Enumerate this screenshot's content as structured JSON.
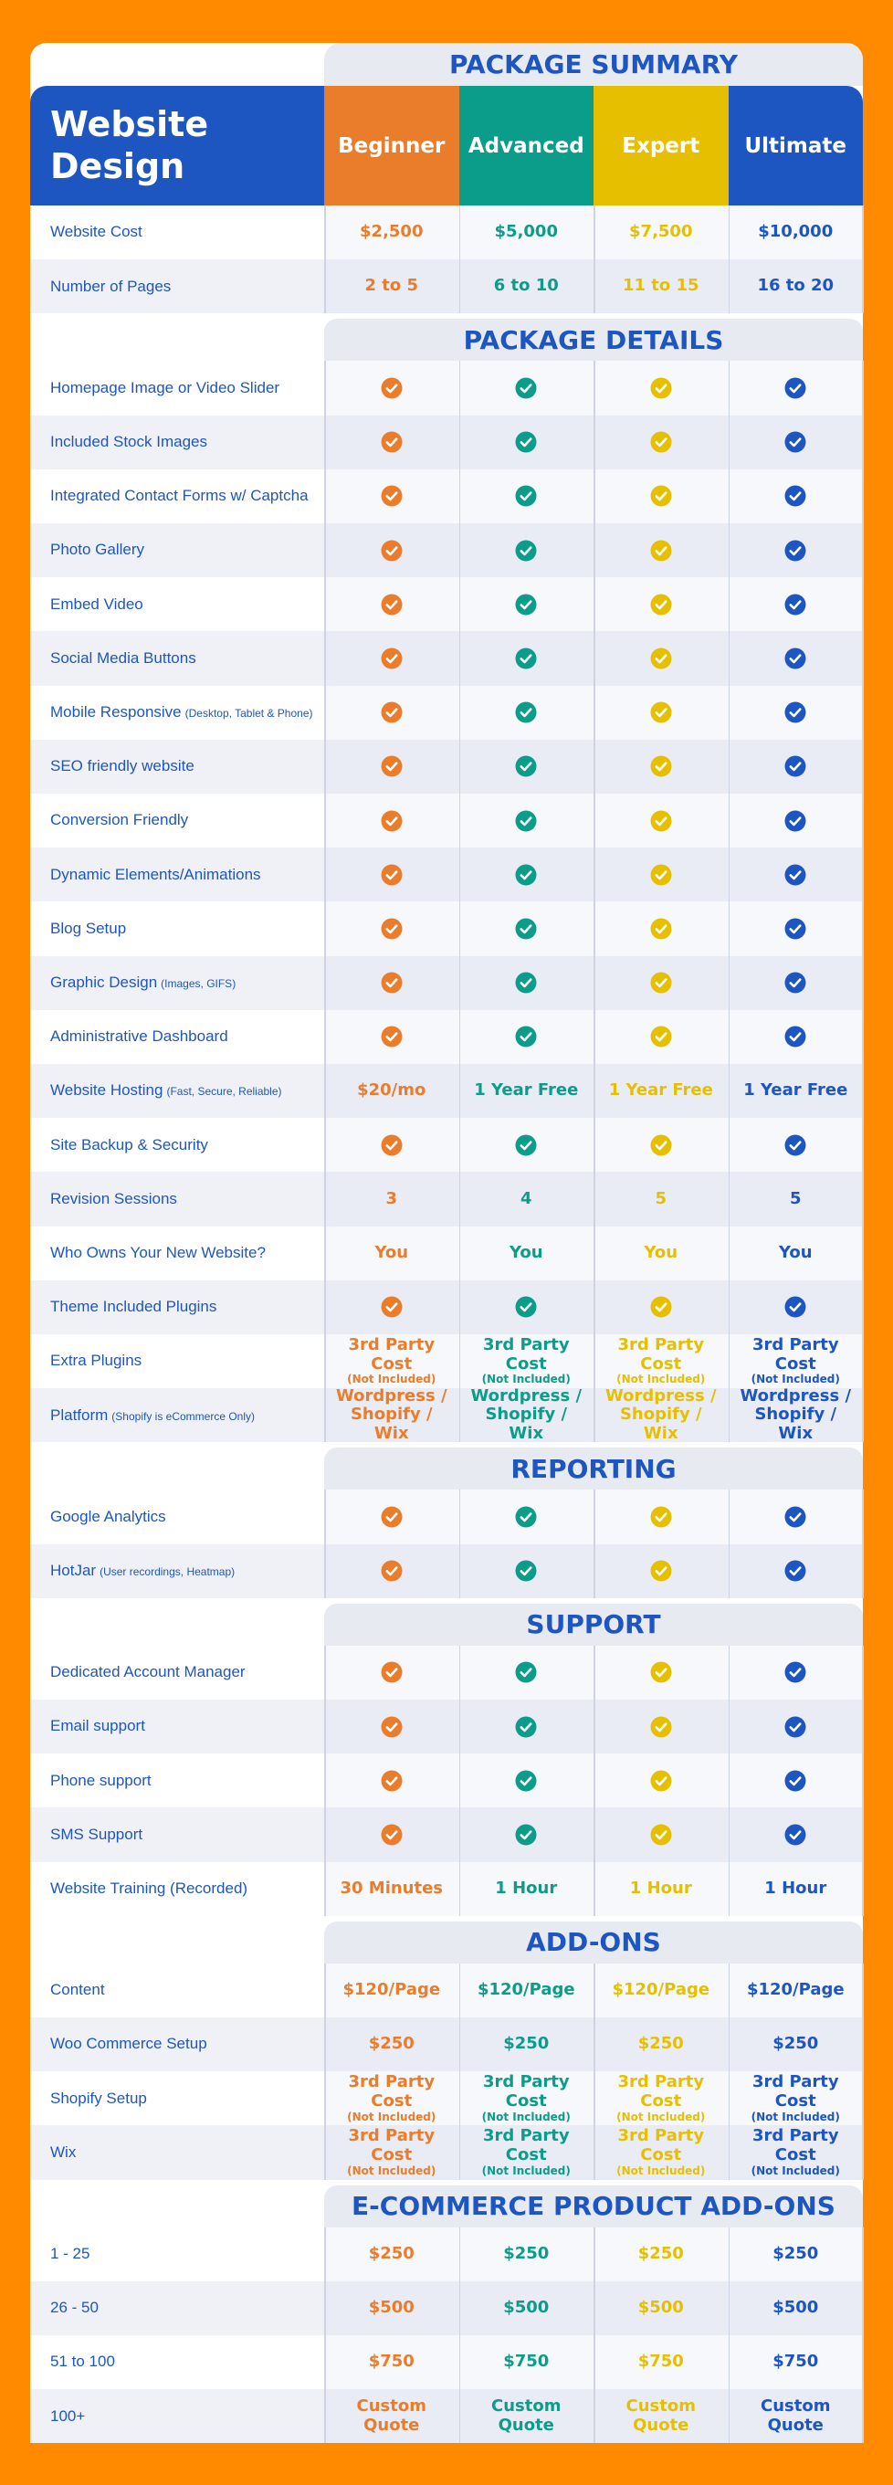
{
  "header": {
    "title": "Website Design"
  },
  "plans": [
    {
      "name": "Beginner",
      "color": "#E97D2C"
    },
    {
      "name": "Advanced",
      "color": "#0C9C8A"
    },
    {
      "name": "Expert",
      "color": "#E6C000"
    },
    {
      "name": "Ultimate",
      "color": "#1E56C1"
    }
  ],
  "sections": [
    {
      "title": "PACKAGE SUMMARY",
      "rows": [
        {
          "label": "Website Cost",
          "cells": [
            "$2,500",
            "$5,000",
            "$7,500",
            "$10,000"
          ]
        },
        {
          "label": "Number of Pages",
          "cells": [
            "2 to 5",
            "6 to 10",
            "11 to 15",
            "16 to 20"
          ]
        }
      ]
    },
    {
      "title": "PACKAGE DETAILS",
      "rows": [
        {
          "label": "Homepage Image or Video Slider",
          "cells": [
            true,
            true,
            true,
            true
          ]
        },
        {
          "label": "Included Stock Images",
          "cells": [
            true,
            true,
            true,
            true
          ]
        },
        {
          "label": "Integrated Contact Forms w/ Captcha",
          "cells": [
            true,
            true,
            true,
            true
          ]
        },
        {
          "label": "Photo Gallery",
          "cells": [
            true,
            true,
            true,
            true
          ]
        },
        {
          "label": "Embed Video",
          "cells": [
            true,
            true,
            true,
            true
          ]
        },
        {
          "label": "Social Media Buttons",
          "cells": [
            true,
            true,
            true,
            true
          ]
        },
        {
          "label": "Mobile Responsive",
          "note": "(Desktop, Tablet & Phone)",
          "cells": [
            true,
            true,
            true,
            true
          ]
        },
        {
          "label": "SEO friendly website",
          "cells": [
            true,
            true,
            true,
            true
          ]
        },
        {
          "label": "Conversion Friendly",
          "cells": [
            true,
            true,
            true,
            true
          ]
        },
        {
          "label": "Dynamic Elements/Animations",
          "cells": [
            true,
            true,
            true,
            true
          ]
        },
        {
          "label": "Blog Setup",
          "cells": [
            true,
            true,
            true,
            true
          ]
        },
        {
          "label": "Graphic Design",
          "note": "(Images, GIFS)",
          "cells": [
            true,
            true,
            true,
            true
          ]
        },
        {
          "label": "Administrative Dashboard",
          "cells": [
            true,
            true,
            true,
            true
          ]
        },
        {
          "label": "Website Hosting",
          "note": "(Fast, Secure, Reliable)",
          "cells": [
            "$20/mo",
            "1 Year Free",
            "1 Year Free",
            "1 Year Free"
          ]
        },
        {
          "label": "Site Backup & Security",
          "cells": [
            true,
            true,
            true,
            true
          ]
        },
        {
          "label": "Revision Sessions",
          "cells": [
            3,
            4,
            5,
            5
          ]
        },
        {
          "label": "Who Owns Your New Website?",
          "cells": [
            "You",
            "You",
            "You",
            "You"
          ]
        },
        {
          "label": "Theme Included Plugins",
          "cells": [
            true,
            true,
            true,
            true
          ]
        },
        {
          "label": "Extra Plugins",
          "cells": [
            {
              "text": "3rd Party Cost",
              "note": "(Not Included)"
            },
            {
              "text": "3rd Party Cost",
              "note": "(Not Included)"
            },
            {
              "text": "3rd Party Cost",
              "note": "(Not Included)"
            },
            {
              "text": "3rd Party Cost",
              "note": "(Not Included)"
            }
          ]
        },
        {
          "label": "Platform",
          "note": "(Shopify is eCommerce Only)",
          "cells": [
            "Wordpress / Shopify / Wix",
            "Wordpress / Shopify / Wix",
            "Wordpress / Shopify / Wix",
            "Wordpress / Shopify / Wix"
          ]
        }
      ]
    },
    {
      "title": "REPORTING",
      "rows": [
        {
          "label": "Google Analytics",
          "cells": [
            true,
            true,
            true,
            true
          ]
        },
        {
          "label": "HotJar",
          "note": "(User recordings, Heatmap)",
          "cells": [
            true,
            true,
            true,
            true
          ]
        }
      ]
    },
    {
      "title": "SUPPORT",
      "rows": [
        {
          "label": "Dedicated Account Manager",
          "cells": [
            true,
            true,
            true,
            true
          ]
        },
        {
          "label": "Email support",
          "cells": [
            true,
            true,
            true,
            true
          ]
        },
        {
          "label": "Phone support",
          "cells": [
            true,
            true,
            true,
            true
          ]
        },
        {
          "label": "SMS Support",
          "cells": [
            true,
            true,
            true,
            true
          ]
        },
        {
          "label": "Website Training (Recorded)",
          "cells": [
            "30 Minutes",
            "1 Hour",
            "1 Hour",
            "1 Hour"
          ]
        }
      ]
    },
    {
      "title": "ADD-ONS",
      "rows": [
        {
          "label": "Content",
          "cells": [
            "$120/Page",
            "$120/Page",
            "$120/Page",
            "$120/Page"
          ]
        },
        {
          "label": "Woo Commerce Setup",
          "cells": [
            "$250",
            "$250",
            "$250",
            "$250"
          ]
        },
        {
          "label": "Shopify Setup",
          "cells": [
            {
              "text": "3rd Party Cost",
              "note": "(Not Included)"
            },
            {
              "text": "3rd Party Cost",
              "note": "(Not Included)"
            },
            {
              "text": "3rd Party Cost",
              "note": "(Not Included)"
            },
            {
              "text": "3rd Party Cost",
              "note": "(Not Included)"
            }
          ]
        },
        {
          "label": "Wix",
          "cells": [
            {
              "text": "3rd Party Cost",
              "note": "(Not Included)"
            },
            {
              "text": "3rd Party Cost",
              "note": "(Not Included)"
            },
            {
              "text": "3rd Party Cost",
              "note": "(Not Included)"
            },
            {
              "text": "3rd Party Cost",
              "note": "(Not Included)"
            }
          ]
        }
      ]
    },
    {
      "title": "E-COMMERCE PRODUCT ADD-ONS",
      "rows": [
        {
          "label": "1 - 25",
          "cells": [
            "$250",
            "$250",
            "$250",
            "$250"
          ]
        },
        {
          "label": "26 - 50",
          "cells": [
            "$500",
            "$500",
            "$500",
            "$500"
          ]
        },
        {
          "label": "51 to 100",
          "cells": [
            "$750",
            "$750",
            "$750",
            "$750"
          ]
        },
        {
          "label": "100+",
          "cells": [
            "Custom Quote",
            "Custom Quote",
            "Custom Quote",
            "Custom Quote"
          ]
        }
      ]
    }
  ]
}
